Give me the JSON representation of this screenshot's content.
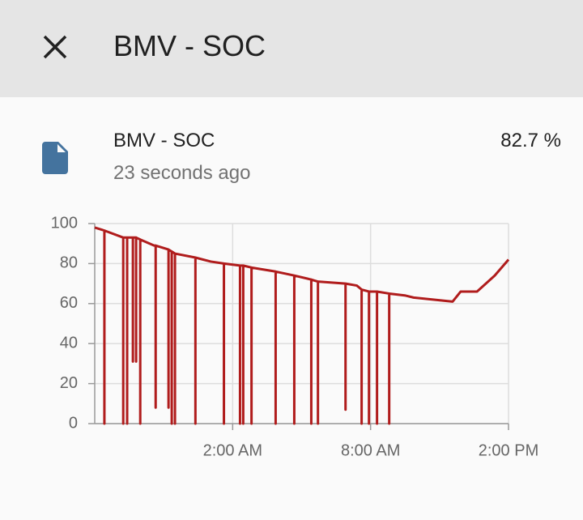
{
  "header": {
    "title": "BMV - SOC"
  },
  "entity": {
    "name": "BMV - SOC",
    "last_changed": "23 seconds ago",
    "state": "82.7 %"
  },
  "chart_data": {
    "type": "line",
    "x": [
      -4,
      -3.58,
      -3.58,
      -3.58,
      -2.76,
      -2.76,
      -2.76,
      -2.59,
      -2.59,
      -2.59,
      -2.34,
      -2.34,
      -2.34,
      -2.2,
      -2.2,
      -2.2,
      -2.02,
      -2.02,
      -2.02,
      -1.42,
      -1.35,
      -1.35,
      -1.35,
      -0.79,
      -0.79,
      -0.79,
      -0.65,
      -0.65,
      -0.65,
      -0.51,
      -0.51,
      -0.51,
      0.38,
      0.38,
      0.38,
      1.05,
      1.62,
      1.62,
      1.62,
      2.32,
      2.32,
      2.32,
      2.46,
      2.46,
      2.46,
      2.82,
      2.82,
      2.82,
      3.87,
      3.87,
      3.87,
      4.68,
      4.68,
      4.68,
      5.42,
      5.42,
      5.42,
      5.71,
      5.71,
      5.71,
      6.91,
      6.91,
      6.91,
      7.4,
      7.61,
      7.61,
      7.61,
      7.93,
      7.93,
      7.93,
      8.28,
      8.28,
      8.28,
      8.81,
      8.81,
      8.81,
      9.52,
      9.87,
      11.57,
      11.92,
      12.63,
      13.4,
      14
    ],
    "series": [
      {
        "name": "BMV - SOC",
        "color": "#b01c1c",
        "values": [
          98,
          96.5,
          0,
          96.5,
          93,
          0,
          93,
          93,
          0,
          93,
          93,
          31,
          93,
          93,
          31,
          93,
          92,
          0,
          92,
          89,
          89,
          8,
          89,
          87,
          8,
          87,
          86,
          0,
          86,
          85,
          0,
          85,
          83,
          0,
          83,
          81,
          80,
          0,
          80,
          79,
          0,
          79,
          79,
          0,
          79,
          78,
          0,
          78,
          76,
          0,
          76,
          74,
          0,
          74,
          72,
          0,
          72,
          71,
          0,
          71,
          70,
          7,
          70,
          69,
          67,
          0,
          67,
          66,
          0,
          66,
          66,
          0,
          66,
          65,
          0,
          65,
          64,
          63,
          61,
          66,
          66,
          74,
          82
        ]
      }
    ],
    "xlim": [
      -4,
      14
    ],
    "xticks": [
      {
        "value": 2,
        "label": "2:00 AM"
      },
      {
        "value": 8,
        "label": "8:00 AM"
      },
      {
        "value": 14,
        "label": "2:00 PM"
      }
    ],
    "ylim": [
      0,
      100
    ],
    "yticks": [
      0,
      20,
      40,
      60,
      80,
      100
    ],
    "grid": true
  }
}
